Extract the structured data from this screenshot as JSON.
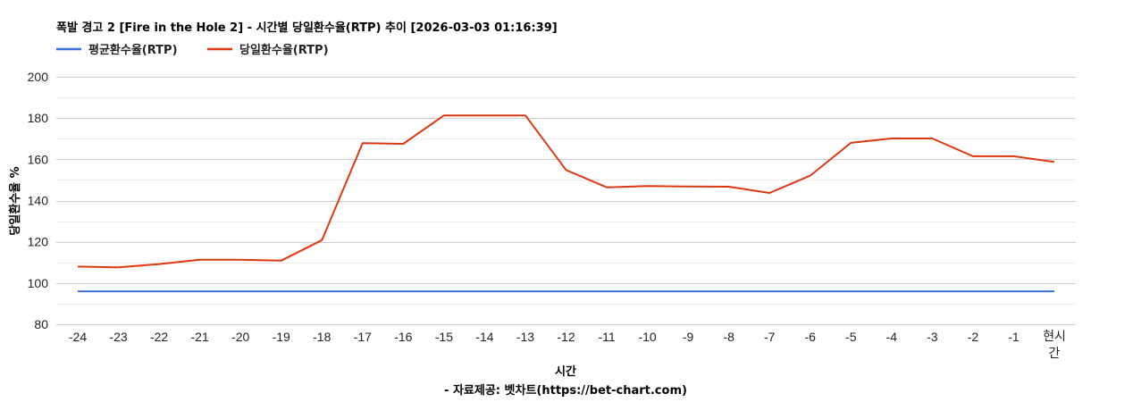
{
  "chart": {
    "title": "폭발 경고 2 [Fire in the Hole 2] - 시간별 당일환수율(RTP) 추이 [2026-03-03 01:16:39]",
    "legend": [
      {
        "label": "평균환수율(RTP)",
        "color": "#3b6fd8"
      },
      {
        "label": "당일환수율(RTP)",
        "color": "#dc3912"
      }
    ],
    "xlabel": "시간",
    "ylabel": "당일환수율 %",
    "source": "- 자료제공: 벳차트(https://bet-chart.com)"
  },
  "chart_data": {
    "type": "line",
    "title": "폭발 경고 2 [Fire in the Hole 2] - 시간별 당일환수율(RTP) 추이 [2026-03-03 01:16:39]",
    "xlabel": "시간",
    "ylabel": "당일환수율 %",
    "categories": [
      "-24",
      "-23",
      "-22",
      "-21",
      "-20",
      "-19",
      "-18",
      "-17",
      "-16",
      "-15",
      "-14",
      "-13",
      "-12",
      "-11",
      "-10",
      "-9",
      "-8",
      "-7",
      "-6",
      "-5",
      "-4",
      "-3",
      "-2",
      "-1",
      "현시간"
    ],
    "series": [
      {
        "name": "평균환수율(RTP)",
        "color": "#3b6fd8",
        "values": [
          96,
          96,
          96,
          96,
          96,
          96,
          96,
          96,
          96,
          96,
          96,
          96,
          96,
          96,
          96,
          96,
          96,
          96,
          96,
          96,
          96,
          96,
          96,
          96,
          96
        ]
      },
      {
        "name": "당일환수율(RTP)",
        "color": "#dc3912",
        "values": [
          108.0,
          107.6,
          109.2,
          111.3,
          111.3,
          110.9,
          120.8,
          167.8,
          167.5,
          181.3,
          181.3,
          181.3,
          154.8,
          146.4,
          147.0,
          146.8,
          146.7,
          143.7,
          152.1,
          168.0,
          170.1,
          170.1,
          161.5,
          161.5,
          158.7
        ]
      }
    ],
    "ylim": [
      80,
      200
    ],
    "yticks": [
      80,
      100,
      120,
      140,
      160,
      180,
      200
    ],
    "grid": true,
    "minor_grid_step": 10,
    "legend_position": "top-left"
  },
  "footer": {
    "source": "- 자료제공: 벳차트(https://bet-chart.com)"
  }
}
